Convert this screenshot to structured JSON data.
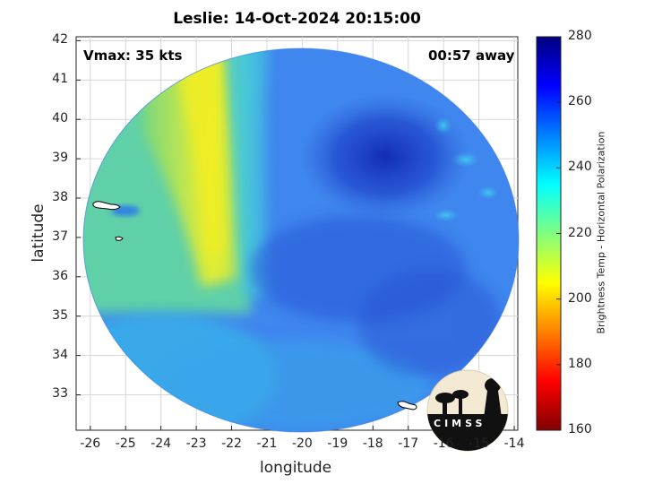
{
  "title": "Leslie: 14-Oct-2024 20:15:00",
  "vmax_label": "Vmax: 35 kts",
  "time_away_label": "00:57 away",
  "xaxis": {
    "label": "longitude",
    "ticks": [
      "-26",
      "-25",
      "-24",
      "-23",
      "-22",
      "-21",
      "-20",
      "-19",
      "-18",
      "-17",
      "-16",
      "-15",
      "-14"
    ],
    "range": [
      -26.4,
      -13.9
    ]
  },
  "yaxis": {
    "label": "latitude",
    "ticks": [
      "33",
      "34",
      "35",
      "36",
      "37",
      "38",
      "39",
      "40",
      "41",
      "42"
    ],
    "range": [
      32.1,
      42.1
    ]
  },
  "colorbar": {
    "label": "Brightness Temp - Horizontal Polarization",
    "ticks": [
      "160",
      "180",
      "200",
      "220",
      "240",
      "260",
      "280"
    ],
    "range": [
      160,
      280
    ],
    "colormap": "jet",
    "colors": [
      "#800000",
      "#ff0000",
      "#ff8000",
      "#ffff00",
      "#80ff80",
      "#00ffff",
      "#0080ff",
      "#0000ff",
      "#000080"
    ]
  },
  "logo": {
    "text": "CIMSS"
  },
  "colors": {
    "warm_band": "#e6ec2a",
    "ambient": "#3f86ee",
    "convection": "#1a3ac4",
    "land_outline": "#000000"
  }
}
